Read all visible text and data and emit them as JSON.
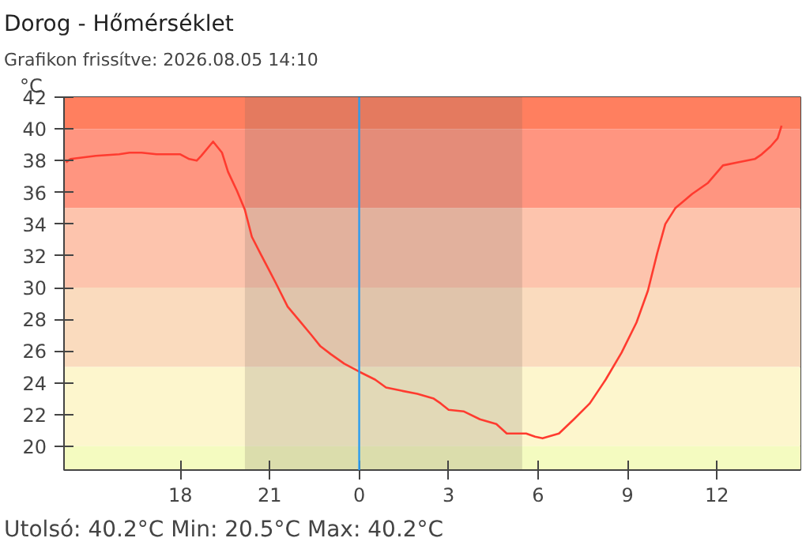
{
  "chart_data": {
    "type": "line",
    "title": "Dorog - Hőmérséklet",
    "subtitle": "Grafikon frissítve: 2026.08.05 14:10",
    "ylabel": "°C",
    "annotations": [
      "Utolsó: 40.2°C",
      "Min: 20.5°C",
      "Max: 40.2°C"
    ],
    "x": [
      "2026-08-04T14:10",
      "2026-08-04T14:19",
      "2026-08-04T15:10",
      "2026-08-04T15:57",
      "2026-08-04T16:18",
      "2026-08-04T16:42",
      "2026-08-04T17:12",
      "2026-08-04T18:00",
      "2026-08-04T18:18",
      "2026-08-04T18:33",
      "2026-08-04T18:42",
      "2026-08-04T19:06",
      "2026-08-04T19:24",
      "2026-08-04T19:36",
      "2026-08-04T19:54",
      "2026-08-04T20:10",
      "2026-08-04T20:24",
      "2026-08-04T20:42",
      "2026-08-04T20:57",
      "2026-08-04T21:12",
      "2026-08-04T21:36",
      "2026-08-04T22:00",
      "2026-08-04T22:24",
      "2026-08-04T22:42",
      "2026-08-04T23:03",
      "2026-08-04T23:30",
      "2026-08-05T00:00",
      "2026-08-05T00:32",
      "2026-08-05T00:54",
      "2026-08-05T01:25",
      "2026-08-05T01:57",
      "2026-08-05T02:30",
      "2026-08-05T02:44",
      "2026-08-05T03:00",
      "2026-08-05T03:30",
      "2026-08-05T04:03",
      "2026-08-05T04:36",
      "2026-08-05T04:57",
      "2026-08-05T05:36",
      "2026-08-05T05:54",
      "2026-08-05T06:09",
      "2026-08-05T06:42",
      "2026-08-05T07:12",
      "2026-08-05T07:44",
      "2026-08-05T08:16",
      "2026-08-05T08:48",
      "2026-08-05T09:18",
      "2026-08-05T09:41",
      "2026-08-05T10:00",
      "2026-08-05T10:16",
      "2026-08-05T10:36",
      "2026-08-05T11:10",
      "2026-08-05T11:42",
      "2026-08-05T12:12",
      "2026-08-05T12:44",
      "2026-08-05T13:16",
      "2026-08-05T13:30",
      "2026-08-05T13:48",
      "2026-08-05T14:02",
      "2026-08-05T14:10"
    ],
    "series": [
      {
        "color": "#ff3b2f",
        "values": [
          37.9,
          38.1,
          38.3,
          38.4,
          38.5,
          38.5,
          38.4,
          38.4,
          38.1,
          38.0,
          38.3,
          39.2,
          38.5,
          37.3,
          36.1,
          34.9,
          33.2,
          32.1,
          31.2,
          30.3,
          28.8,
          27.9,
          27.0,
          26.3,
          25.8,
          25.2,
          24.7,
          24.2,
          23.7,
          23.5,
          23.3,
          23.0,
          22.7,
          22.3,
          22.2,
          21.7,
          21.4,
          20.8,
          20.8,
          20.6,
          20.5,
          20.8,
          21.7,
          22.7,
          24.2,
          25.9,
          27.8,
          29.8,
          32.2,
          34.0,
          35.0,
          35.9,
          36.6,
          37.7,
          37.9,
          38.1,
          38.4,
          38.9,
          39.4,
          40.2
        ]
      }
    ],
    "xlim": [
      "2026-08-04T14:06",
      "2026-08-05T14:48"
    ],
    "xticks": [
      {
        "value": "2026-08-04T18:00",
        "label": "18"
      },
      {
        "value": "2026-08-04T21:00",
        "label": "21"
      },
      {
        "value": "2026-08-05T00:00",
        "label": "0"
      },
      {
        "value": "2026-08-05T03:00",
        "label": "3"
      },
      {
        "value": "2026-08-05T06:00",
        "label": "6"
      },
      {
        "value": "2026-08-05T09:00",
        "label": "9"
      },
      {
        "value": "2026-08-05T12:00",
        "label": "12"
      }
    ],
    "ylim": [
      18.5,
      42
    ],
    "yticks": [
      20,
      22,
      24,
      26,
      28,
      30,
      32,
      34,
      36,
      38,
      40,
      42
    ],
    "bands": [
      {
        "axis": "y",
        "from": 40,
        "to": 42,
        "color": "#ff7f5f"
      },
      {
        "axis": "y",
        "from": 35,
        "to": 40,
        "color": "#ff9580"
      },
      {
        "axis": "y",
        "from": 30,
        "to": 35,
        "color": "#fdc4ad"
      },
      {
        "axis": "y",
        "from": 25,
        "to": 30,
        "color": "#fadbbe"
      },
      {
        "axis": "y",
        "from": 20,
        "to": 25,
        "color": "#fdf6cd"
      },
      {
        "axis": "y",
        "from": 18.5,
        "to": 20,
        "color": "#f4fbc0"
      },
      {
        "axis": "x",
        "from": "2026-08-04T20:10",
        "to": "2026-08-05T05:28",
        "color": "#7a6a60"
      }
    ],
    "ref_lines": [
      {
        "axis": "x",
        "value": "2026-08-05T00:00",
        "color": "#2b9cf0"
      }
    ],
    "grid": false,
    "marker": "none",
    "line_style": "solid"
  }
}
